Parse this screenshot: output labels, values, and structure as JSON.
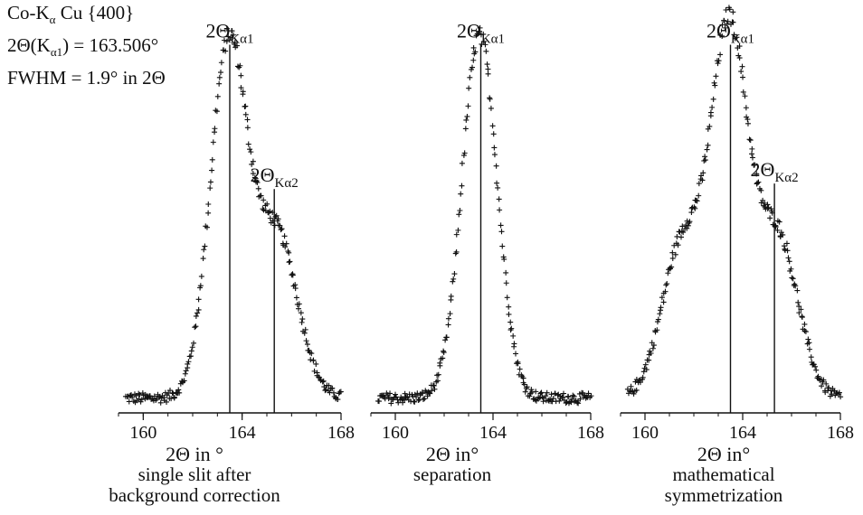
{
  "header": {
    "line1": {
      "a": "Co-K",
      "sub": "α",
      "b": " Cu {400}"
    },
    "line2": {
      "a": "2Θ(K",
      "sub": "α1",
      "b": ") = 163.506°"
    },
    "line3": "FWHM = 1.9° in 2Θ"
  },
  "chart_data": [
    {
      "type": "scatter",
      "name": "single slit after background correction",
      "xlabel": "2Θ in °",
      "caption": [
        "single slit after",
        "background correction"
      ],
      "xlim": [
        159,
        168
      ],
      "ylim": [
        0,
        1.05
      ],
      "xticks": [
        160,
        164,
        168
      ],
      "xtick_labels": [
        "160",
        "164",
        "168"
      ],
      "marker": "+",
      "grid": false,
      "lines": [
        {
          "x": 163.5,
          "label_main": "2Θ",
          "label_sub": "Kα1",
          "top": 0.995
        },
        {
          "x": 165.3,
          "label_main": "2Θ",
          "label_sub": "Kα2",
          "top": 0.605
        }
      ],
      "peaks": [
        {
          "center": 163.45,
          "height": 0.95,
          "width": 0.75
        },
        {
          "center": 165.4,
          "height": 0.44,
          "width": 0.85
        }
      ],
      "baseline": 0.04
    },
    {
      "type": "scatter",
      "name": "separation",
      "xlabel": "2Θ in°",
      "caption": [
        "separation"
      ],
      "xlim": [
        159,
        168
      ],
      "ylim": [
        0,
        1.05
      ],
      "xticks": [
        160,
        164,
        168
      ],
      "xtick_labels": [
        "160",
        "164",
        "168"
      ],
      "marker": "+",
      "grid": false,
      "lines": [
        {
          "x": 163.5,
          "label_main": "2Θ",
          "label_sub": "Kα1",
          "top": 0.995
        }
      ],
      "peaks": [
        {
          "center": 163.45,
          "height": 0.98,
          "width": 0.72
        }
      ],
      "baseline": 0.04
    },
    {
      "type": "scatter",
      "name": "mathematical symmetrization",
      "xlabel": "2Θ in°",
      "caption": [
        "mathematical",
        "symmetrization"
      ],
      "xlim": [
        159,
        168
      ],
      "ylim": [
        0,
        1.05
      ],
      "xticks": [
        160,
        164,
        168
      ],
      "xtick_labels": [
        "160",
        "164",
        "168"
      ],
      "marker": "+",
      "grid": false,
      "lines": [
        {
          "x": 163.5,
          "label_main": "2Θ",
          "label_sub": "Kα1",
          "top": 0.995
        },
        {
          "x": 165.3,
          "label_main": "2Θ",
          "label_sub": "Kα2",
          "top": 0.62
        }
      ],
      "peaks": [
        {
          "center": 163.45,
          "height": 0.97,
          "width": 0.75
        },
        {
          "center": 165.4,
          "height": 0.44,
          "width": 0.85
        },
        {
          "center": 161.55,
          "height": 0.42,
          "width": 0.85
        }
      ],
      "baseline": 0.04
    }
  ]
}
